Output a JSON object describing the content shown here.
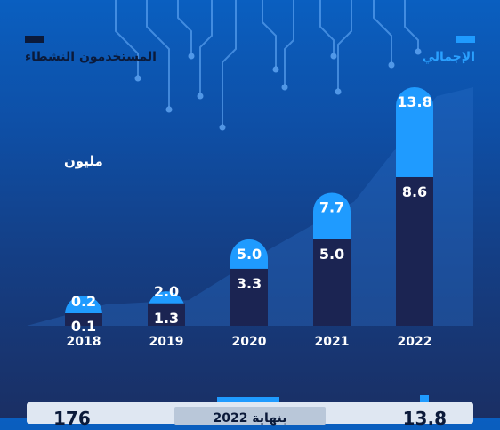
{
  "legend": {
    "active_label": "المستخدمون النشطاء",
    "total_label": "الإجمالي"
  },
  "unit_label": "مليون",
  "footer": {
    "left_value": "176",
    "pill_text": "بنهاية 2022",
    "right_value": "13.8"
  },
  "colors": {
    "active": "#1b2452",
    "total": "#1f9bff",
    "label": "#ffffff"
  },
  "chart_data": {
    "type": "bar",
    "categories": [
      "2018",
      "2019",
      "2020",
      "2021",
      "2022"
    ],
    "series": [
      {
        "name": "المستخدمون النشطاء",
        "values": [
          0.1,
          1.3,
          3.3,
          5.0,
          8.6
        ]
      },
      {
        "name": "الإجمالي",
        "values": [
          0.2,
          2.0,
          5.0,
          7.7,
          13.8
        ]
      }
    ],
    "ylabel": "مليون",
    "ylim": [
      0,
      13.8
    ]
  }
}
